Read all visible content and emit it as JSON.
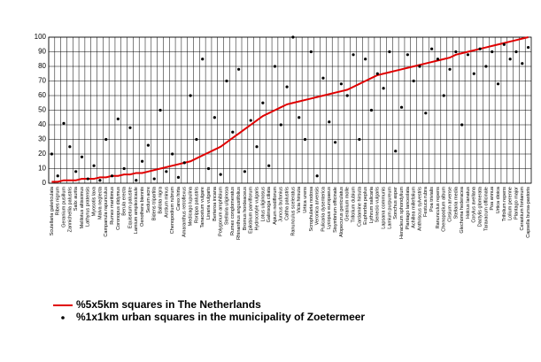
{
  "chart_data": {
    "type": "line-scatter",
    "categories": [
      "Scutellaria galericulata",
      "Ribes nigrum",
      "Geranium pusillum",
      "Zannichellia palustris",
      "Salix aurita",
      "Melilotus altissimus",
      "Lathyrus pratensis",
      "Myosotis laxa",
      "Malva neglecta",
      "Campanula rapunculus",
      "Rumex maritimus",
      "Coronopus didymus",
      "Berula erecta",
      "Equisetum palustre",
      "Lamium amplexicaule",
      "Oenothera biennis",
      "Sedum acre",
      "Bidens tripartita",
      "Ballota nigra",
      "Arctium minus",
      "Chenopodium rubrum",
      "Carex hirta",
      "Amaranthus retroflexus",
      "Medicago lupulina",
      "Rorippa palustris",
      "Tanacetum vulgare",
      "Linaria vulgaris",
      "Berteroa incana",
      "Polygonum amphibium",
      "Stellaria uliginosa",
      "Rumex conglomeratus",
      "Rhinanthus angustifolius",
      "Bromus hordeaceus",
      "Epilobium parviflorum",
      "Hydrocotyle vulgaris",
      "Lotus uliginosus",
      "Galinsoga ciliata",
      "Apium nodiflorum",
      "Juncus bufonius",
      "Caltha palustris",
      "Ranunculus sceleratus",
      "Vicia hirsuta",
      "Urtica urens",
      "Scrophularia nodosa",
      "Veronica arvensis",
      "Pulicaria dysenterica",
      "Lycopus europaeus",
      "Sisymbrium officinale",
      "Alopecurus geniculatus",
      "Geranium molle",
      "Trifolium dubium",
      "Cardamine hirsuta",
      "Euphorbia peplus",
      "Lythrum salicaria",
      "Senecio vulgaris",
      "Lapsana communis",
      "Lamium purpureum",
      "Sonchus asper",
      "Heracleum sphondylium",
      "Plantago lanceolata",
      "Achillea millefolium",
      "Anthriscus sylvestris",
      "Festuca rubra",
      "Poa trivialis",
      "Ranunculus repens",
      "Chenopodium album",
      "Cirsium arvense",
      "Stellaria media",
      "Glechoma hederacea",
      "Holcus lanatus",
      "Corylus avellana",
      "Dactylis glomerata",
      "Taraxacum officinale",
      "Poa annua",
      "Urtica dioica",
      "Trifolium repens",
      "Lolium perenne",
      "Plantago major",
      "Cerastium fontanum",
      "Capsella bursa-pastoris"
    ],
    "series": [
      {
        "name": "%5x5km squares in The Netherlands",
        "color": "#e00000",
        "style": "line",
        "values": [
          1,
          1,
          2,
          2,
          2,
          3,
          3,
          3,
          4,
          4,
          5,
          5,
          6,
          6,
          7,
          7,
          8,
          9,
          10,
          11,
          12,
          13,
          14,
          15,
          17,
          19,
          21,
          23,
          25,
          28,
          31,
          34,
          37,
          40,
          43,
          46,
          48,
          50,
          52,
          54,
          55,
          56,
          57,
          58,
          59,
          60,
          61,
          62,
          63,
          64,
          66,
          68,
          70,
          72,
          74,
          75,
          76,
          77,
          78,
          79,
          80,
          81,
          82,
          83,
          84,
          85,
          86,
          88,
          89,
          90,
          91,
          92,
          93,
          94,
          95,
          96,
          97,
          98,
          99,
          100
        ]
      },
      {
        "name": "%1x1km urban squares in the municipality of Zoetermeer",
        "color": "#000000",
        "style": "dots",
        "values": [
          20,
          5,
          41,
          25,
          8,
          18,
          3,
          12,
          2,
          30,
          5,
          44,
          10,
          38,
          2,
          15,
          26,
          3,
          50,
          8,
          20,
          4,
          14,
          60,
          30,
          85,
          10,
          45,
          6,
          70,
          35,
          78,
          8,
          43,
          25,
          55,
          12,
          80,
          40,
          66,
          100,
          45,
          30,
          90,
          5,
          72,
          42,
          28,
          68,
          60,
          88,
          30,
          85,
          50,
          75,
          65,
          90,
          22,
          52,
          88,
          70,
          80,
          48,
          92,
          85,
          60,
          78,
          90,
          40,
          88,
          75,
          92,
          80,
          90,
          68,
          95,
          85,
          90,
          82,
          93
        ]
      }
    ],
    "ylim": [
      0,
      100
    ],
    "yticks": [
      0,
      10,
      20,
      30,
      40,
      50,
      60,
      70,
      80,
      90,
      100
    ],
    "grid": true
  }
}
